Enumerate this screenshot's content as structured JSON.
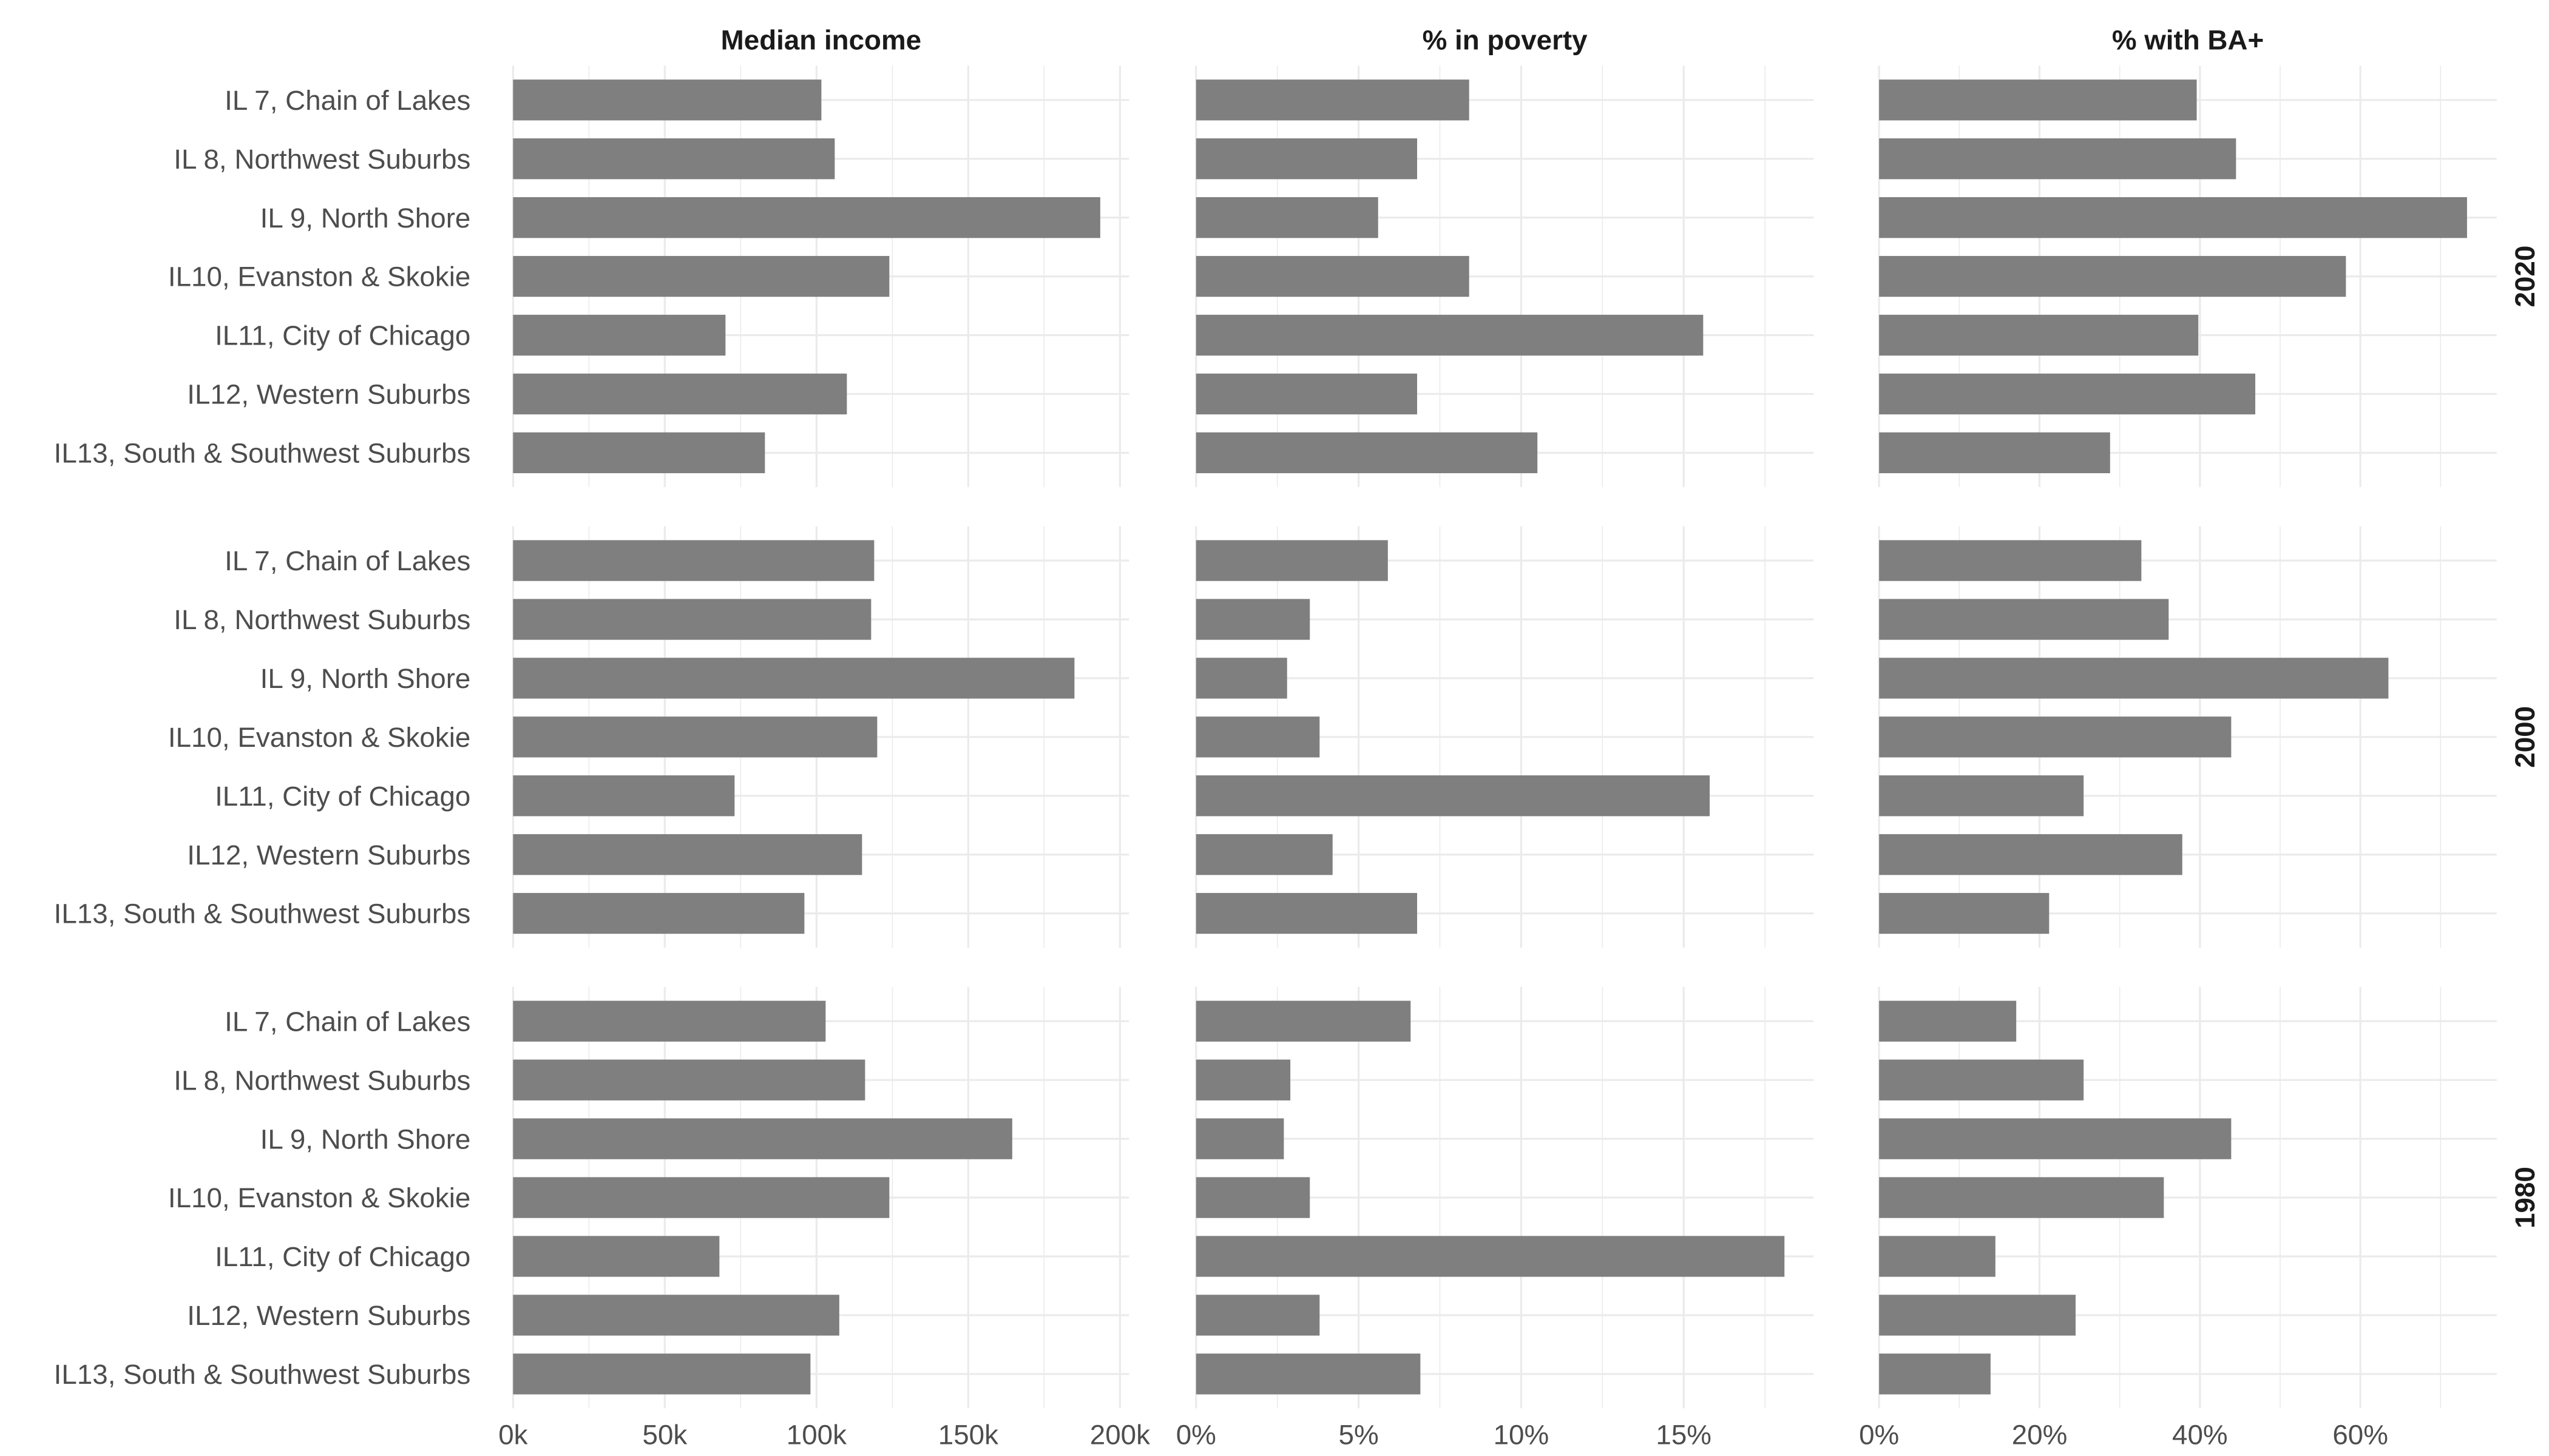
{
  "chart_data": {
    "type": "bar",
    "orientation": "horizontal",
    "categories": [
      "IL 7, Chain of Lakes",
      "IL 8, Northwest Suburbs",
      "IL 9, North Shore",
      "IL10, Evanston & Skokie",
      "IL11, City of Chicago",
      "IL12, Western Suburbs",
      "IL13, South & Southwest Suburbs"
    ],
    "bar_color": "#7f7f7f",
    "grid": true,
    "columns": [
      {
        "title": "Median income",
        "xlim": [
          0,
          203
        ],
        "ticks": [
          0,
          50,
          100,
          150,
          200
        ],
        "tick_labels": [
          "0k",
          "50k",
          "100k",
          "150k",
          "200k"
        ]
      },
      {
        "title": "% in poverty",
        "xlim": [
          0,
          19
        ],
        "ticks": [
          0,
          5,
          10,
          15
        ],
        "tick_labels": [
          "0%",
          "5%",
          "10%",
          "15%"
        ]
      },
      {
        "title": "% with BA+",
        "xlim": [
          0,
          77
        ],
        "ticks": [
          0,
          20,
          40,
          60
        ],
        "tick_labels": [
          "0%",
          "20%",
          "40%",
          "60%"
        ]
      }
    ],
    "rows": [
      {
        "label": "2020",
        "values": [
          [
            101.6,
            106,
            193.5,
            124,
            70,
            110,
            83
          ],
          [
            8.4,
            6.8,
            5.6,
            8.4,
            15.6,
            6.8,
            10.5
          ],
          [
            39.6,
            44.5,
            73.3,
            58.2,
            39.8,
            46.9,
            28.8
          ]
        ]
      },
      {
        "label": "2000",
        "values": [
          [
            119,
            118,
            185,
            120,
            73,
            115,
            96
          ],
          [
            5.9,
            3.5,
            2.8,
            3.8,
            15.8,
            4.2,
            6.8
          ],
          [
            32.7,
            36.1,
            63.5,
            43.9,
            25.5,
            37.8,
            21.2
          ]
        ]
      },
      {
        "label": "1980",
        "values": [
          [
            103,
            116,
            164.5,
            124,
            68,
            107.5,
            98
          ],
          [
            6.6,
            2.9,
            2.7,
            3.5,
            18.1,
            3.8,
            6.9
          ],
          [
            17.1,
            25.5,
            43.9,
            35.5,
            14.5,
            24.5,
            13.9
          ]
        ]
      }
    ]
  }
}
